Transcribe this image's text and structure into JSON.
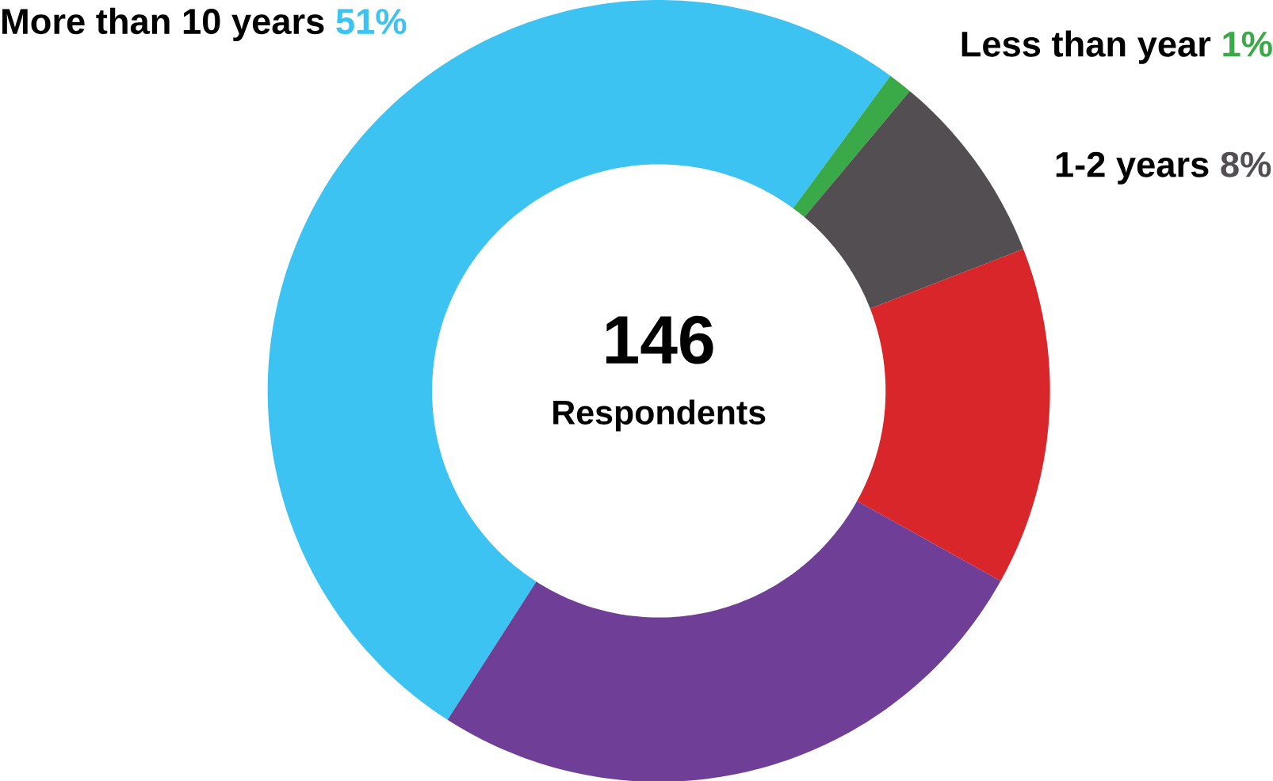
{
  "chart_data": {
    "type": "donut",
    "categories": [
      "More than 10 years",
      "Less than year",
      "1-2 years",
      null,
      null
    ],
    "values": [
      51,
      1,
      8,
      14,
      26
    ],
    "colors": [
      "#3cc3f2",
      "#3aaa48",
      "#524e51",
      "#d8262a",
      "#6f3f97"
    ],
    "value_labels": [
      "51%",
      "1%",
      "8%",
      null,
      null
    ],
    "annotations": [
      "146",
      "Respondents"
    ]
  }
}
